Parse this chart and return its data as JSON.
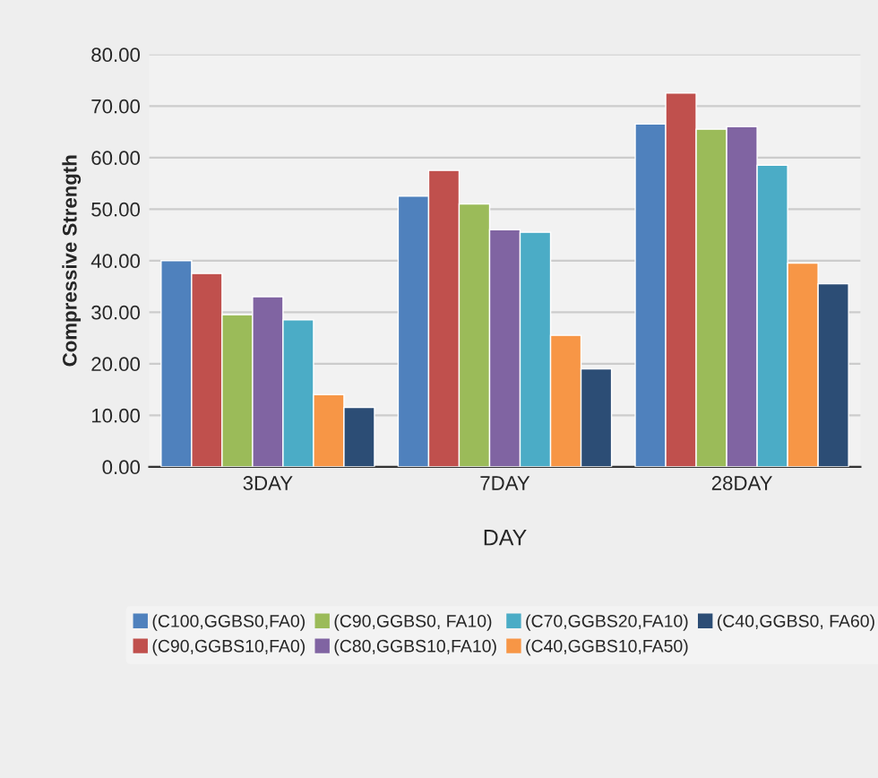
{
  "chart_data": {
    "type": "bar",
    "xlabel": "DAY",
    "ylabel": "Compressive Strength",
    "categories": [
      "3DAY",
      "7DAY",
      "28DAY"
    ],
    "series": [
      {
        "name": "(C100,GGBS0,FA0)",
        "color": "#4f81bd",
        "values": [
          40,
          52.5,
          66.5
        ]
      },
      {
        "name": "(C90,GGBS10,FA0)",
        "color": "#c0504d",
        "values": [
          37.5,
          57.5,
          72.5
        ]
      },
      {
        "name": "(C90,GGBS0, FA10)",
        "color": "#9bbb59",
        "values": [
          29.5,
          51,
          65.5
        ]
      },
      {
        "name": "(C80,GGBS10,FA10)",
        "color": "#8064a2",
        "values": [
          33,
          46,
          66
        ]
      },
      {
        "name": "(C70,GGBS20,FA10)",
        "color": "#4bacc6",
        "values": [
          28.5,
          45.5,
          58.5
        ]
      },
      {
        "name": "(C40,GGBS10,FA50)",
        "color": "#f79646",
        "values": [
          14,
          25.5,
          39.5
        ]
      },
      {
        "name": "(C40,GGBS0, FA60)",
        "color": "#2c4d75",
        "values": [
          11.5,
          19,
          35.5
        ]
      }
    ],
    "ylim": [
      0,
      80
    ],
    "yticks": [
      {
        "value": 0,
        "label": "0.00"
      },
      {
        "value": 10,
        "label": "10.00"
      },
      {
        "value": 20,
        "label": "20.00"
      },
      {
        "value": 30,
        "label": "30.00"
      },
      {
        "value": 40,
        "label": "40.00"
      },
      {
        "value": 50,
        "label": "50.00"
      },
      {
        "value": 60,
        "label": "60.00"
      },
      {
        "value": 70,
        "label": "70.00"
      },
      {
        "value": 80,
        "label": "80.00"
      }
    ],
    "grid": "y",
    "legend": "bottom"
  }
}
